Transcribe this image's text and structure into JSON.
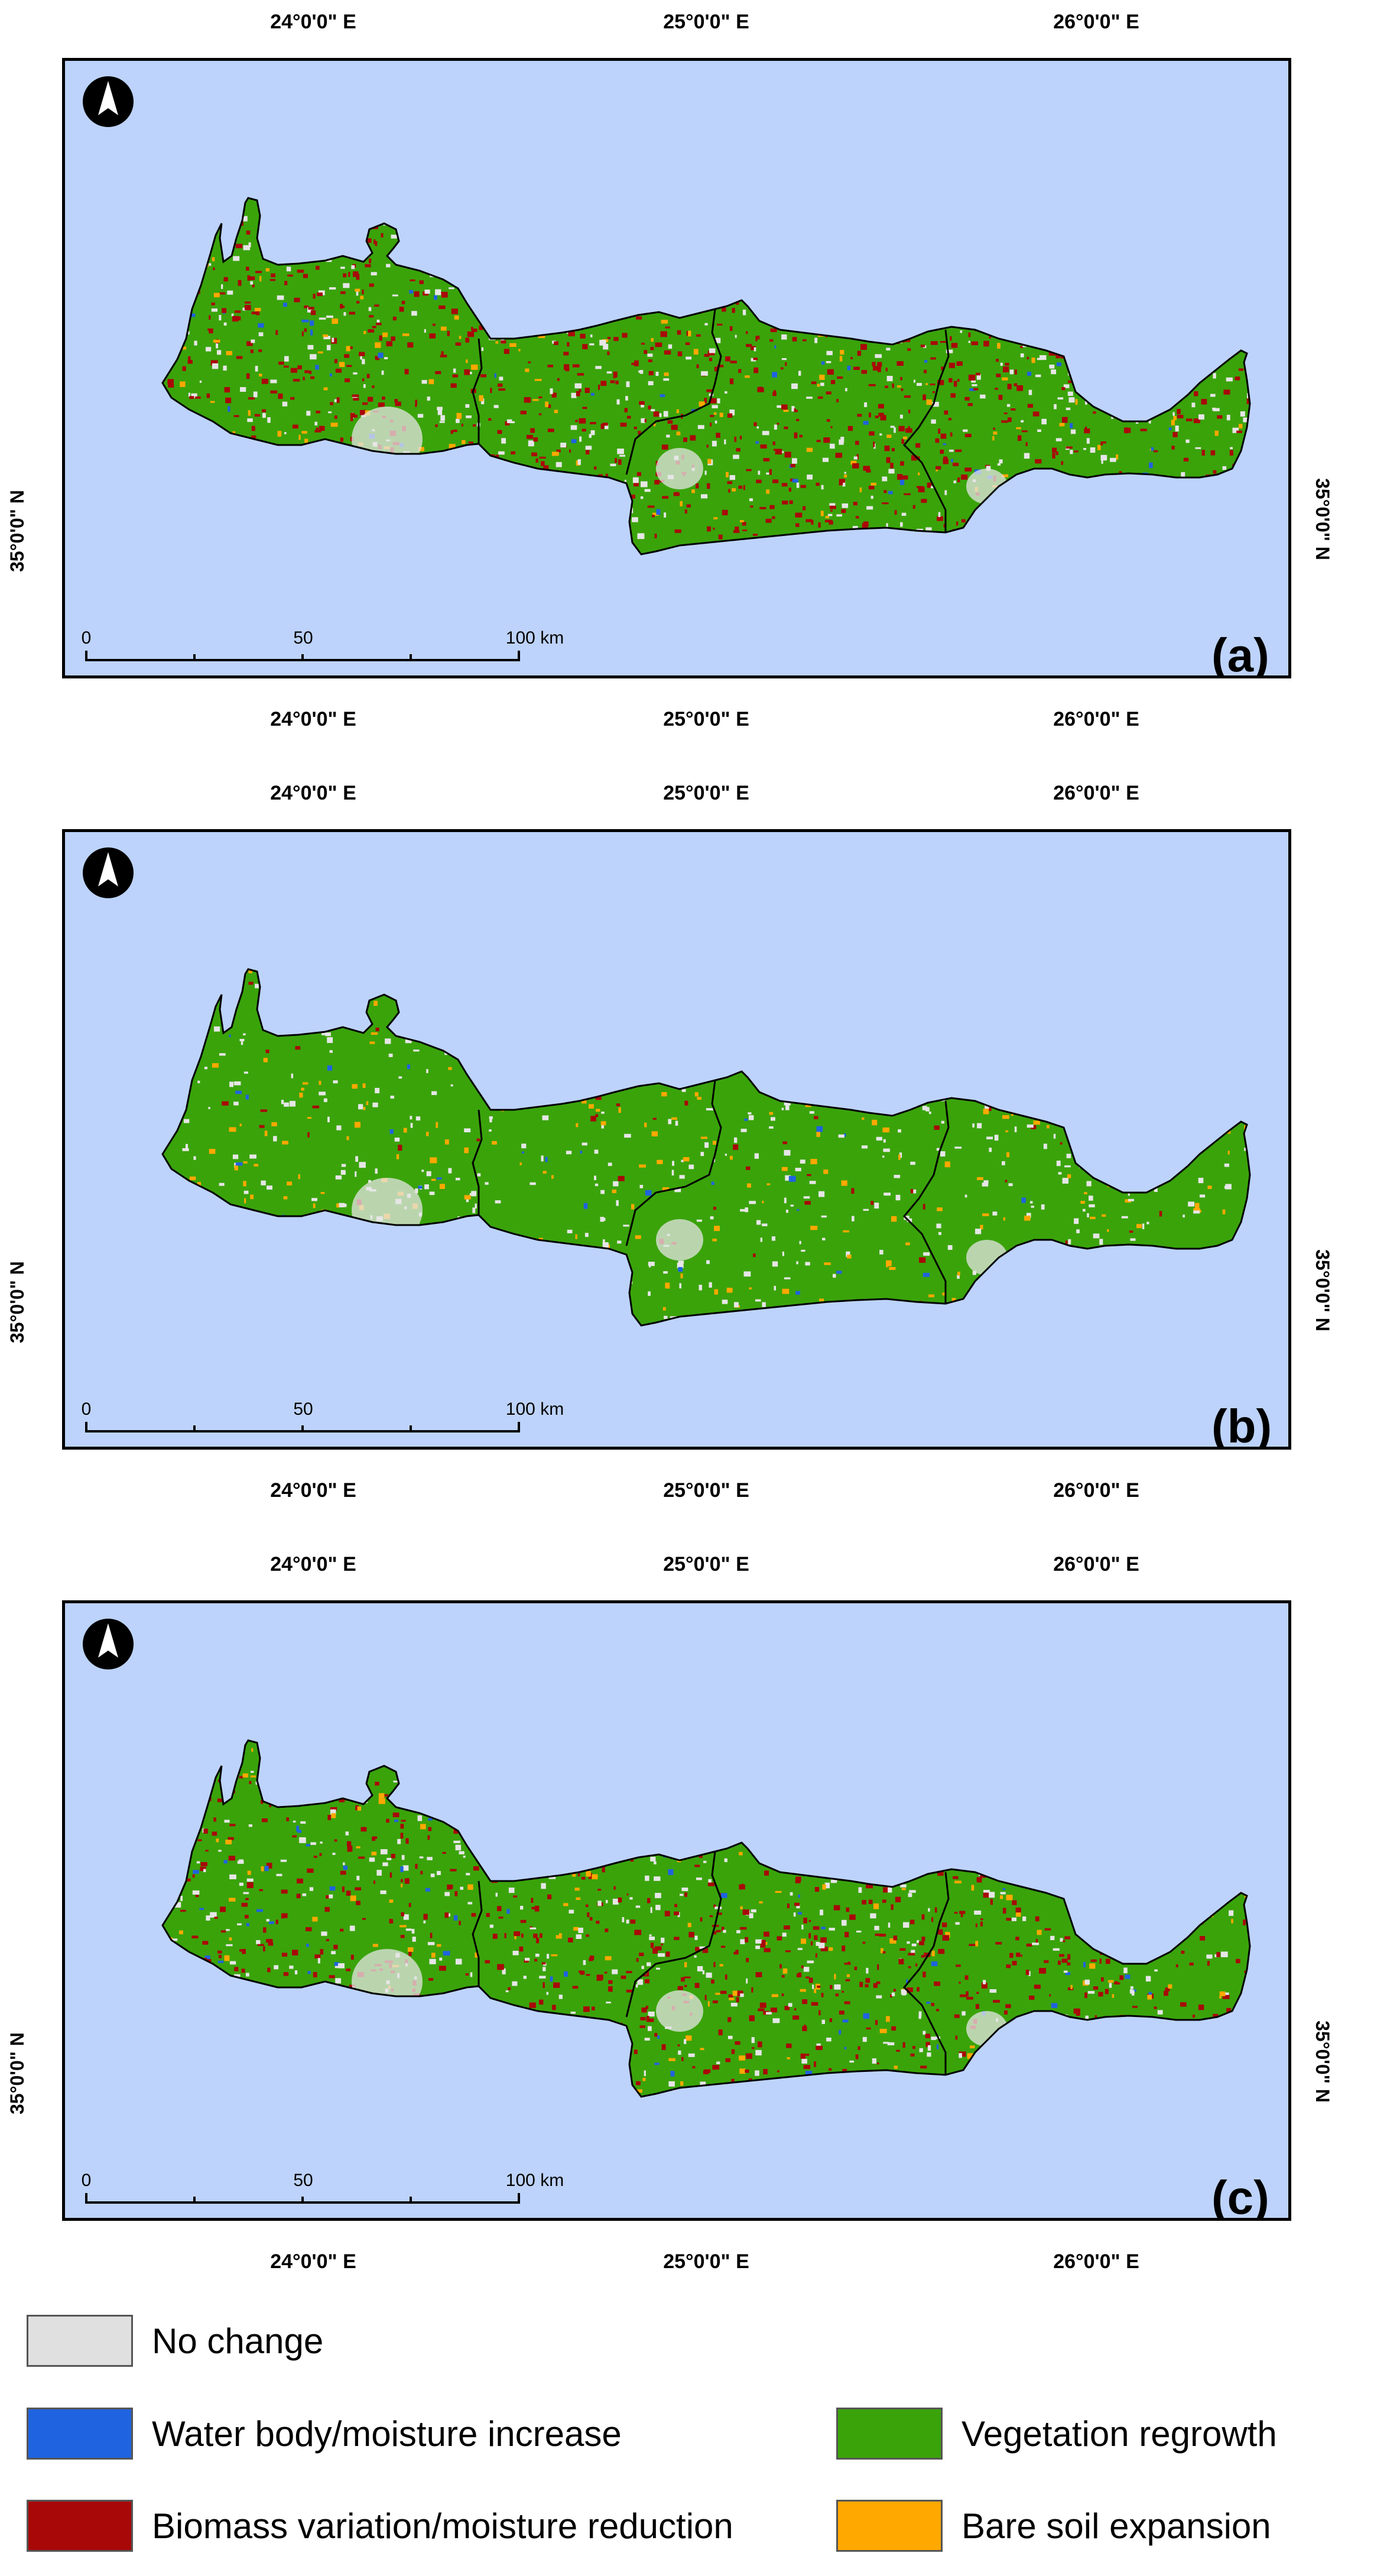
{
  "panels": [
    {
      "label": "(a)",
      "lon_top": [
        "24°0'0\" E",
        "25°0'0\" E",
        "26°0'0\" E"
      ],
      "lon_bottom": [
        "24°0'0\" E",
        "25°0'0\" E",
        "26°0'0\" E"
      ],
      "lat_left": "35°0'0\" N",
      "lat_right": "35°0'0\" N",
      "scale": [
        "0",
        "50",
        "100 km"
      ],
      "mix": {
        "green": 0.55,
        "red": 0.25,
        "white": 0.13,
        "orange": 0.05,
        "blue": 0.02
      }
    },
    {
      "label": "(b)",
      "lon_top": [
        "24°0'0\" E",
        "25°0'0\" E",
        "26°0'0\" E"
      ],
      "lon_bottom": [
        "24°0'0\" E",
        "25°0'0\" E",
        "26°0'0\" E"
      ],
      "lat_left": "35°0'0\" N",
      "lat_right": "35°0'0\" N",
      "scale": [
        "0",
        "50",
        "100 km"
      ],
      "mix": {
        "green": 0.78,
        "red": 0.02,
        "white": 0.12,
        "orange": 0.07,
        "blue": 0.01
      }
    },
    {
      "label": "(c)",
      "lon_top": [
        "24°0'0\" E",
        "25°0'0\" E",
        "26°0'0\" E"
      ],
      "lon_bottom": [
        "24°0'0\" E",
        "25°0'0\" E",
        "26°0'0\" E"
      ],
      "lat_left": "35°0'0\" N",
      "lat_right": "35°0'0\" N",
      "scale": [
        "0",
        "50",
        "100 km"
      ],
      "mix": {
        "green": 0.58,
        "red": 0.23,
        "white": 0.12,
        "orange": 0.05,
        "blue": 0.02
      }
    }
  ],
  "legend": [
    {
      "label": "No change",
      "color": "#e0e0e0"
    },
    {
      "label": "Water body/moisture increase",
      "color": "#1f63e0"
    },
    {
      "label": "Vegetation regrowth",
      "color": "#3aa30a"
    },
    {
      "label": "Biomass variation/moisture reduction",
      "color": "#a80808"
    },
    {
      "label": "Bare soil expansion",
      "color": "#ffa800"
    }
  ],
  "colors": {
    "sea": "#bdd3fb",
    "green": "#3aa30a",
    "red": "#a80808",
    "white": "#e6e6e6",
    "orange": "#ffa800",
    "blue": "#1f63e0"
  },
  "icons": {
    "north_arrow": "north-arrow-icon"
  }
}
